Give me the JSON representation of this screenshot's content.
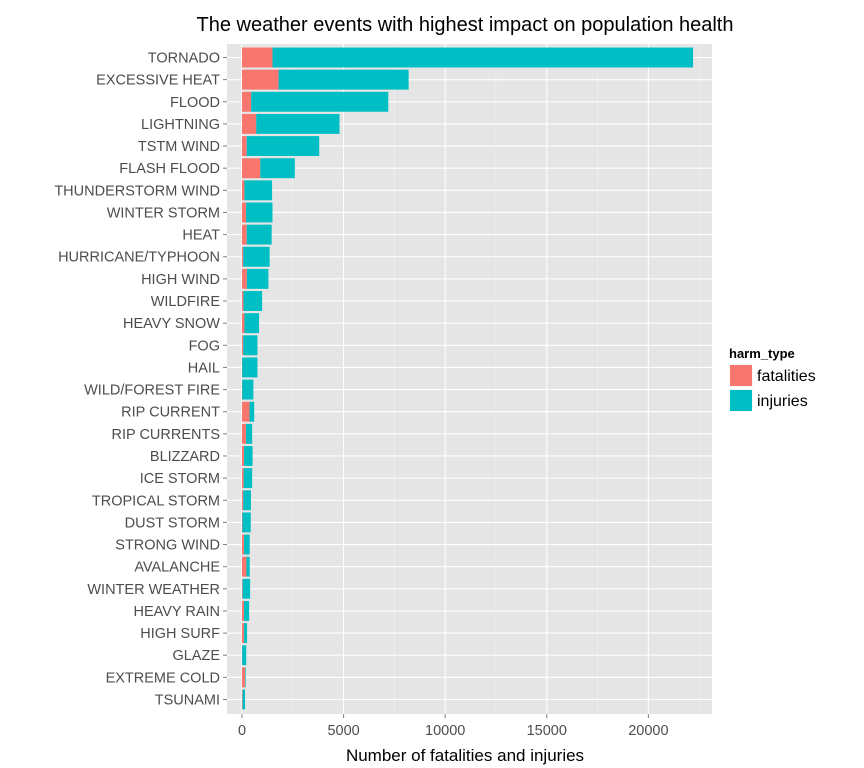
{
  "chart_data": {
    "type": "bar",
    "orientation": "horizontal",
    "stacked": true,
    "title": "The weather events with highest impact on population health",
    "xlabel": "Number of fatalities and injuries",
    "ylabel": "",
    "xlim": [
      0,
      23000
    ],
    "x_ticks": [
      0,
      5000,
      10000,
      15000,
      20000
    ],
    "grid": true,
    "legend_position": "right",
    "legend_title": "harm_type",
    "categories": [
      "TORNADO",
      "EXCESSIVE HEAT",
      "FLOOD",
      "LIGHTNING",
      "TSTM WIND",
      "FLASH FLOOD",
      "THUNDERSTORM WIND",
      "WINTER STORM",
      "HEAT",
      "HURRICANE/TYPHOON",
      "HIGH WIND",
      "WILDFIRE",
      "HEAVY SNOW",
      "FOG",
      "HAIL",
      "WILD/FOREST FIRE",
      "RIP CURRENT",
      "RIP CURRENTS",
      "BLIZZARD",
      "ICE STORM",
      "TROPICAL STORM",
      "DUST STORM",
      "STRONG WIND",
      "AVALANCHE",
      "WINTER WEATHER",
      "HEAVY RAIN",
      "HIGH SURF",
      "GLAZE",
      "EXTREME COLD",
      "TSUNAMI"
    ],
    "series": [
      {
        "name": "fatalities",
        "color": "#F8766D",
        "values": [
          1500,
          1800,
          450,
          700,
          230,
          900,
          120,
          200,
          230,
          60,
          240,
          70,
          120,
          60,
          10,
          10,
          370,
          200,
          100,
          80,
          60,
          20,
          100,
          220,
          30,
          100,
          100,
          10,
          150,
          30
        ]
      },
      {
        "name": "injuries",
        "color": "#00BFC4",
        "values": [
          20700,
          6400,
          6750,
          4100,
          3570,
          1700,
          1360,
          1300,
          1230,
          1300,
          1060,
          920,
          720,
          700,
          750,
          550,
          230,
          300,
          420,
          420,
          380,
          410,
          280,
          160,
          370,
          250,
          150,
          200,
          30,
          120
        ]
      }
    ]
  }
}
